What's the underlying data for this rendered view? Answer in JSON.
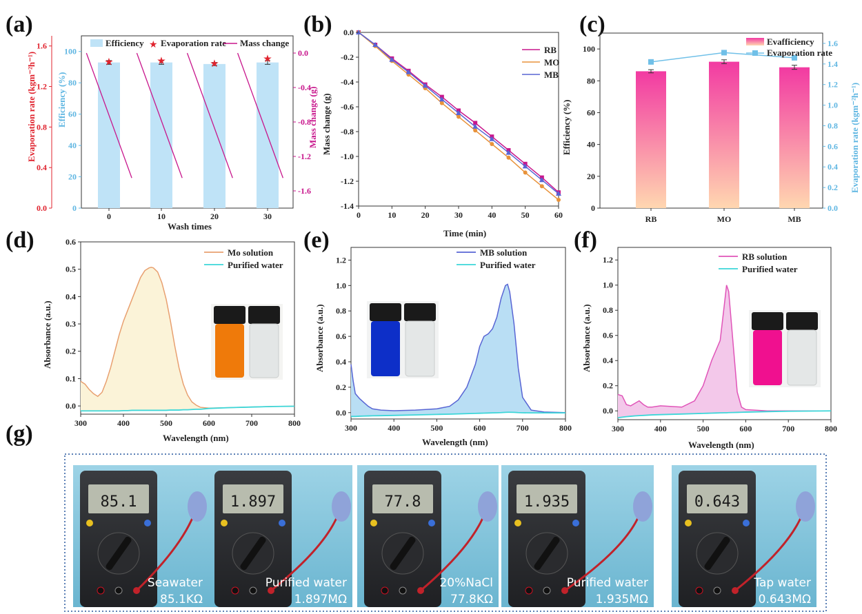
{
  "panel_labels": [
    "(a)",
    "(b)",
    "(c)",
    "(d)",
    "(e)",
    "(f)",
    "(g)"
  ],
  "colors": {
    "red": "#e0232e",
    "sky": "#70c0e8",
    "magenta": "#c8168c",
    "rb": "#c8168c",
    "mo": "#e8923a",
    "mb": "#5865d4",
    "water": "#3cd6d8",
    "bar_light": "#bfe3f7",
    "bar_pink_top": "#f04aa8",
    "bar_pink_bottom": "#ffd0a8",
    "wall": "#8fcde0",
    "dotted_border": "#5a7fb5"
  },
  "chart_data": [
    {
      "panel": "(a)",
      "type": "bar",
      "categories": [
        "0",
        "10",
        "20",
        "30"
      ],
      "xlabel": "Wash times",
      "legend": [
        "Efficiency",
        "Evaporation rate",
        "Mass change"
      ],
      "legend_position": "top",
      "series": [
        {
          "name": "Efficiency",
          "axis": "Efficiency (%)",
          "values": [
            93,
            93,
            92,
            93
          ],
          "errors": [
            1.2,
            1.2,
            1.0,
            1.2
          ],
          "ylim": [
            0,
            110
          ],
          "yticks": [
            "0",
            "20",
            "40",
            "60",
            "80",
            "100"
          ]
        },
        {
          "name": "Evaporation rate",
          "axis": "Evaporation rate (kgm⁻²h⁻¹)",
          "values": [
            1.45,
            1.46,
            1.43,
            1.48
          ],
          "ylim": [
            0,
            1.7
          ],
          "yticks": [
            "0.0",
            "0.4",
            "0.8",
            "1.2",
            "1.6"
          ]
        },
        {
          "name": "Mass change",
          "axis": "Mass change (g)",
          "segments": [
            {
              "x_start": -5,
              "x_end": 4,
              "y_start": 0.0,
              "y_end": -1.45
            },
            {
              "x_start": 5,
              "x_end": 14,
              "y_start": 0.0,
              "y_end": -1.45
            },
            {
              "x_start": 15,
              "x_end": 24,
              "y_start": 0.0,
              "y_end": -1.45
            },
            {
              "x_start": 25,
              "x_end": 34,
              "y_start": 0.0,
              "y_end": -1.45
            }
          ],
          "ylim": [
            -1.8,
            0.2
          ],
          "yticks": [
            "0.0",
            "-0.4",
            "-0.8",
            "-1.2",
            "-1.6"
          ]
        }
      ]
    },
    {
      "panel": "(b)",
      "type": "line",
      "xlabel": "Time (min)",
      "ylabel": "Mass change (g)",
      "xlim": [
        0,
        60
      ],
      "ylim": [
        -1.4,
        0.0
      ],
      "xticks": [
        "0",
        "10",
        "20",
        "30",
        "40",
        "50",
        "60"
      ],
      "yticks": [
        "0.0",
        "-0.2",
        "-0.4",
        "-0.6",
        "-0.8",
        "-1.0",
        "-1.2",
        "-1.4"
      ],
      "legend_position": "top-right",
      "x": [
        0,
        5,
        10,
        15,
        20,
        25,
        30,
        35,
        40,
        45,
        50,
        55,
        60
      ],
      "series": [
        {
          "name": "RB",
          "values": [
            0,
            -0.1,
            -0.21,
            -0.31,
            -0.42,
            -0.52,
            -0.63,
            -0.73,
            -0.84,
            -0.95,
            -1.06,
            -1.17,
            -1.29
          ]
        },
        {
          "name": "MO",
          "values": [
            0,
            -0.11,
            -0.23,
            -0.34,
            -0.45,
            -0.57,
            -0.68,
            -0.79,
            -0.9,
            -1.01,
            -1.13,
            -1.24,
            -1.35
          ]
        },
        {
          "name": "MB",
          "values": [
            0,
            -0.1,
            -0.22,
            -0.32,
            -0.43,
            -0.54,
            -0.65,
            -0.76,
            -0.86,
            -0.97,
            -1.08,
            -1.19,
            -1.3
          ]
        }
      ]
    },
    {
      "panel": "(c)",
      "type": "bar",
      "categories": [
        "RB",
        "MO",
        "MB"
      ],
      "legend": [
        "Evafficiency",
        "Evaporation rate"
      ],
      "legend_position": "top-right",
      "series": [
        {
          "name": "Evafficiency",
          "axis": "Efficiency (%)",
          "values": [
            86,
            92,
            88.5
          ],
          "errors": [
            1.0,
            1.2,
            1.3
          ],
          "ylim": [
            0,
            110
          ],
          "yticks": [
            "0",
            "20",
            "40",
            "60",
            "80",
            "100"
          ]
        },
        {
          "name": "Evaporation rate",
          "axis": "Evaporation rate (kgm⁻²h⁻¹)",
          "values": [
            1.42,
            1.51,
            1.46
          ],
          "ylim": [
            0,
            1.7
          ],
          "yticks": [
            "0.0",
            "0.2",
            "0.4",
            "0.6",
            "0.8",
            "1.0",
            "1.2",
            "1.4",
            "1.6"
          ]
        }
      ]
    },
    {
      "panel": "(d)",
      "type": "area",
      "xlabel": "Wavelength (nm)",
      "ylabel": "Absorbance (a.u.)",
      "xlim": [
        300,
        800
      ],
      "ylim": [
        -0.03,
        0.6
      ],
      "xticks": [
        "300",
        "400",
        "500",
        "600",
        "700",
        "800"
      ],
      "yticks": [
        "0.0",
        "0.1",
        "0.2",
        "0.3",
        "0.4",
        "0.5",
        "0.6"
      ],
      "legend_position": "top-right",
      "x": [
        300,
        310,
        320,
        330,
        340,
        350,
        360,
        370,
        380,
        390,
        400,
        410,
        420,
        430,
        440,
        450,
        460,
        465,
        470,
        480,
        490,
        500,
        510,
        520,
        530,
        540,
        550,
        560,
        570,
        580,
        600,
        650,
        700,
        750,
        800
      ],
      "series": [
        {
          "name": "Mo solution",
          "values": [
            0.09,
            0.08,
            0.06,
            0.045,
            0.035,
            0.05,
            0.09,
            0.14,
            0.2,
            0.26,
            0.31,
            0.35,
            0.39,
            0.43,
            0.47,
            0.495,
            0.505,
            0.507,
            0.505,
            0.49,
            0.45,
            0.39,
            0.31,
            0.22,
            0.14,
            0.08,
            0.04,
            0.015,
            0.003,
            -0.005,
            -0.008,
            -0.006,
            -0.004,
            -0.002,
            -0.001
          ]
        },
        {
          "name": "Purified water",
          "values": [
            -0.018,
            -0.018,
            -0.018,
            -0.018,
            -0.018,
            -0.018,
            -0.018,
            -0.018,
            -0.018,
            -0.018,
            -0.017,
            -0.017,
            -0.016,
            -0.016,
            -0.016,
            -0.016,
            -0.016,
            -0.016,
            -0.016,
            -0.016,
            -0.016,
            -0.016,
            -0.015,
            -0.015,
            -0.015,
            -0.014,
            -0.014,
            -0.013,
            -0.012,
            -0.012,
            -0.009,
            -0.006,
            -0.004,
            -0.002,
            -0.001
          ]
        }
      ]
    },
    {
      "panel": "(e)",
      "type": "area",
      "xlabel": "Wavelength (nm)",
      "ylabel": "Absorbance (a.u.)",
      "xlim": [
        300,
        800
      ],
      "ylim": [
        -0.05,
        1.3
      ],
      "xticks": [
        "300",
        "400",
        "500",
        "600",
        "700",
        "800"
      ],
      "yticks": [
        "0.0",
        "0.2",
        "0.4",
        "0.6",
        "0.8",
        "1.0",
        "1.2"
      ],
      "legend_position": "top-right",
      "x": [
        300,
        305,
        310,
        320,
        330,
        340,
        350,
        370,
        400,
        450,
        500,
        530,
        550,
        570,
        590,
        600,
        610,
        620,
        630,
        640,
        650,
        660,
        665,
        670,
        680,
        690,
        700,
        720,
        750,
        800
      ],
      "series": [
        {
          "name": "MB solution",
          "values": [
            0.38,
            0.25,
            0.15,
            0.11,
            0.08,
            0.05,
            0.03,
            0.02,
            0.015,
            0.02,
            0.03,
            0.05,
            0.1,
            0.2,
            0.38,
            0.52,
            0.6,
            0.62,
            0.66,
            0.75,
            0.9,
            1.0,
            1.01,
            0.95,
            0.7,
            0.35,
            0.12,
            0.02,
            0.005,
            0.0
          ]
        },
        {
          "name": "Purified water",
          "values": [
            -0.03,
            -0.03,
            -0.03,
            -0.028,
            -0.027,
            -0.026,
            -0.025,
            -0.024,
            -0.022,
            -0.018,
            -0.014,
            -0.012,
            -0.01,
            -0.008,
            -0.006,
            -0.005,
            -0.004,
            -0.003,
            -0.002,
            -0.001,
            0.0,
            0.002,
            0.003,
            0.003,
            0.002,
            0.0,
            -0.001,
            -0.002,
            -0.002,
            -0.002
          ]
        }
      ]
    },
    {
      "panel": "(f)",
      "type": "area",
      "xlabel": "Wavelength (nm)",
      "ylabel": "Absorbance (a.u.)",
      "xlim": [
        300,
        800
      ],
      "ylim": [
        -0.07,
        1.3
      ],
      "xticks": [
        "300",
        "400",
        "500",
        "600",
        "700",
        "800"
      ],
      "yticks": [
        "0.0",
        "0.2",
        "0.4",
        "0.6",
        "0.8",
        "1.0",
        "1.2"
      ],
      "legend_position": "top-right",
      "x": [
        300,
        310,
        320,
        330,
        340,
        350,
        360,
        370,
        380,
        400,
        450,
        480,
        500,
        510,
        520,
        530,
        540,
        550,
        555,
        560,
        570,
        580,
        590,
        600,
        650,
        700,
        800
      ],
      "series": [
        {
          "name": "RB solution",
          "values": [
            0.13,
            0.12,
            0.05,
            0.04,
            0.06,
            0.08,
            0.05,
            0.03,
            0.03,
            0.04,
            0.03,
            0.08,
            0.2,
            0.3,
            0.4,
            0.48,
            0.56,
            0.85,
            1.0,
            0.95,
            0.55,
            0.15,
            0.03,
            0.01,
            0.0,
            0.0,
            0.0
          ]
        },
        {
          "name": "Purified water",
          "values": [
            -0.055,
            -0.05,
            -0.046,
            -0.043,
            -0.04,
            -0.038,
            -0.036,
            -0.034,
            -0.032,
            -0.03,
            -0.025,
            -0.022,
            -0.02,
            -0.019,
            -0.018,
            -0.017,
            -0.016,
            -0.015,
            -0.015,
            -0.014,
            -0.013,
            -0.012,
            -0.011,
            -0.01,
            -0.006,
            -0.003,
            0.0
          ]
        }
      ]
    }
  ],
  "photos": {
    "d": [
      "orange vial",
      "clear vial"
    ],
    "e": [
      "blue vial",
      "clear vial"
    ],
    "f": [
      "pink vial",
      "clear vial"
    ]
  },
  "multimeter_photos": [
    {
      "display": "85.1",
      "caption_line1": "Seawater",
      "caption_line2": "85.1KΩ"
    },
    {
      "display": "1.897",
      "caption_line1": "Purified water",
      "caption_line2": "1.897MΩ"
    },
    {
      "display": "77.8",
      "caption_line1": "20%NaCl",
      "caption_line2": "77.8KΩ"
    },
    {
      "display": "1.935",
      "caption_line1": "Purified water",
      "caption_line2": "1.935MΩ"
    },
    {
      "display": "0.643",
      "caption_line1": "Tap water",
      "caption_line2": "0.643MΩ"
    }
  ]
}
